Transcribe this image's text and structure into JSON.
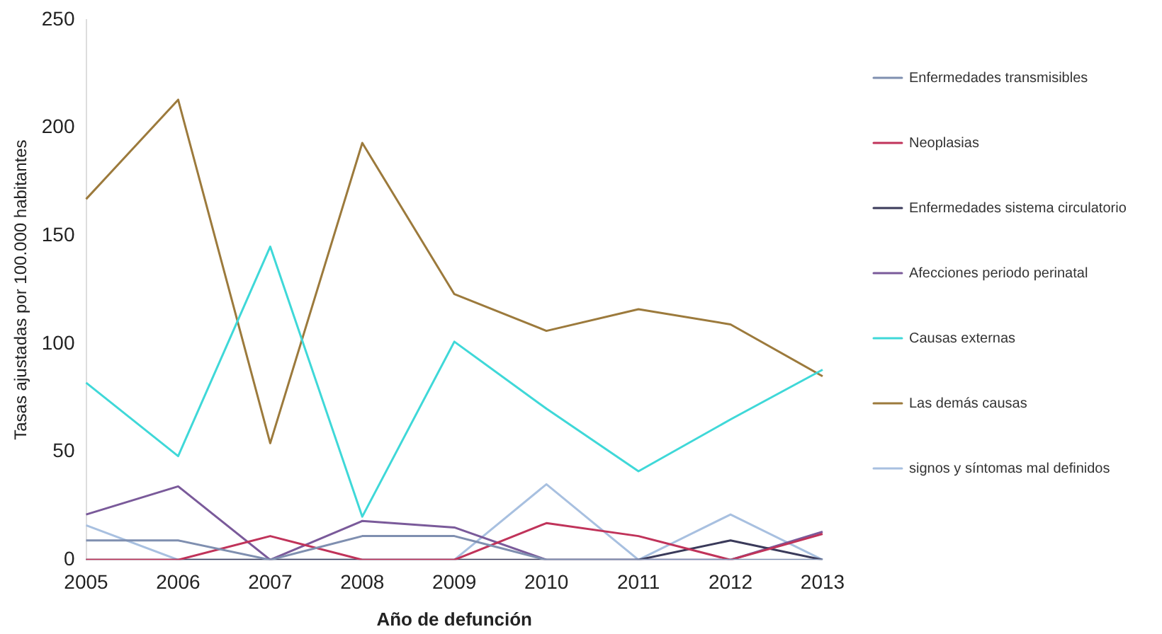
{
  "chart_data": {
    "type": "line",
    "xlabel": "Año de defunción",
    "ylabel": "Tasas ajustadas por 100.000 habitantes",
    "categories": [
      "2005",
      "2006",
      "2007",
      "2008",
      "2009",
      "2010",
      "2011",
      "2012",
      "2013"
    ],
    "series": [
      {
        "name": "Enfermedades transmisibles",
        "color": "#7f8fb0",
        "values": [
          9,
          9,
          0,
          11,
          11,
          0,
          0,
          0,
          0
        ]
      },
      {
        "name": "Neoplasias",
        "color": "#c0335a",
        "values": [
          0,
          0,
          11,
          0,
          0,
          17,
          11,
          0,
          12
        ]
      },
      {
        "name": "Enfermedades sistema circulatorio",
        "color": "#3a3a5a",
        "values": [
          0,
          0,
          0,
          0,
          0,
          0,
          0,
          9,
          0
        ]
      },
      {
        "name": "Afecciones periodo perinatal",
        "color": "#7a5a9a",
        "values": [
          21,
          34,
          0,
          18,
          15,
          0,
          0,
          0,
          13
        ]
      },
      {
        "name": "Causas externas",
        "color": "#3fd8d8",
        "values": [
          82,
          48,
          145,
          20,
          101,
          70,
          41,
          65,
          88
        ]
      },
      {
        "name": "Las demás causas",
        "color": "#9c7a3c",
        "values": [
          167,
          213,
          54,
          193,
          123,
          106,
          116,
          109,
          85
        ]
      },
      {
        "name": "signos y síntomas mal definidos",
        "color": "#a8c0e0",
        "values": [
          16,
          0,
          0,
          0,
          0,
          35,
          0,
          21,
          0
        ]
      }
    ],
    "ylim": [
      0,
      250
    ],
    "yticks": [
      0,
      50,
      100,
      150,
      200,
      250
    ],
    "grid": false,
    "legend": "right",
    "marker": "none",
    "line_style": "solid"
  }
}
